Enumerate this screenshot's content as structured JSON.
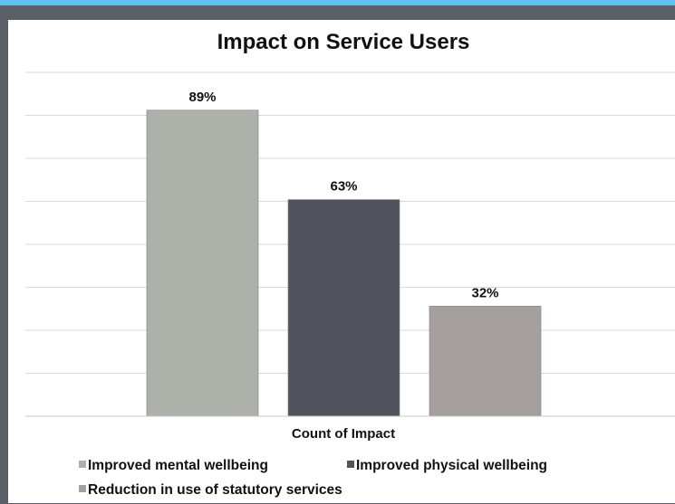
{
  "chart_data": {
    "type": "bar",
    "title": "Impact on Service Users",
    "xlabel": "Count of Impact",
    "ylabel": "",
    "ylim": [
      0,
      100
    ],
    "grid": true,
    "legend_position": "bottom",
    "series": [
      {
        "name": "Improved mental wellbeing",
        "value": 89,
        "label": "89%",
        "color": "#aeb0aa"
      },
      {
        "name": "Improved physical wellbeing",
        "value": 63,
        "label": "63%",
        "color": "#50535c"
      },
      {
        "name": "Reduction in use of statutory services",
        "value": 32,
        "label": "32%",
        "color": "#a5a09e"
      }
    ]
  }
}
